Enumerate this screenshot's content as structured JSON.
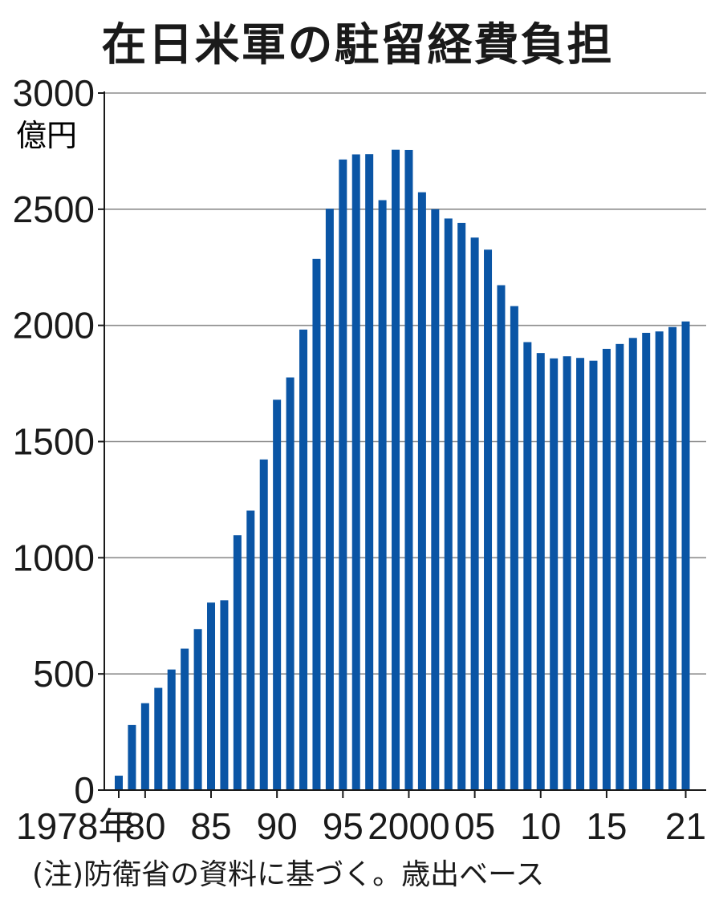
{
  "chart_data": {
    "type": "bar",
    "title": "在日米軍の駐留経費負担",
    "ylabel": "億円",
    "ylim": [
      0,
      3000
    ],
    "yticks": [
      0,
      500,
      1000,
      1500,
      2000,
      2500,
      3000
    ],
    "grid": true,
    "color": "#0a55a5",
    "x": [
      1978,
      1979,
      1980,
      1981,
      1982,
      1983,
      1984,
      1985,
      1986,
      1987,
      1988,
      1989,
      1990,
      1991,
      1992,
      1993,
      1994,
      1995,
      1996,
      1997,
      1998,
      1999,
      2000,
      2001,
      2002,
      2003,
      2004,
      2005,
      2006,
      2007,
      2008,
      2009,
      2010,
      2011,
      2012,
      2013,
      2014,
      2015,
      2016,
      2017,
      2018,
      2019,
      2020,
      2021
    ],
    "values": [
      62,
      280,
      374,
      440,
      519,
      609,
      693,
      807,
      817,
      1097,
      1203,
      1423,
      1680,
      1776,
      1982,
      2286,
      2502,
      2714,
      2736,
      2737,
      2539,
      2756,
      2755,
      2573,
      2500,
      2460,
      2441,
      2378,
      2326,
      2173,
      2083,
      1928,
      1881,
      1858,
      1867,
      1860,
      1848,
      1899,
      1920,
      1946,
      1968,
      1974,
      1993,
      2017
    ],
    "xtick_labels": [
      {
        "year": 1978,
        "label": "1978年"
      },
      {
        "year": 1980,
        "label": "80"
      },
      {
        "year": 1985,
        "label": "85"
      },
      {
        "year": 1990,
        "label": "90"
      },
      {
        "year": 1995,
        "label": "95"
      },
      {
        "year": 2000,
        "label": "2000"
      },
      {
        "year": 2005,
        "label": "05"
      },
      {
        "year": 2010,
        "label": "10"
      },
      {
        "year": 2015,
        "label": "15"
      },
      {
        "year": 2021,
        "label": "21"
      }
    ],
    "note": "(注)防衛省の資料に基づく。歳出ベース"
  }
}
